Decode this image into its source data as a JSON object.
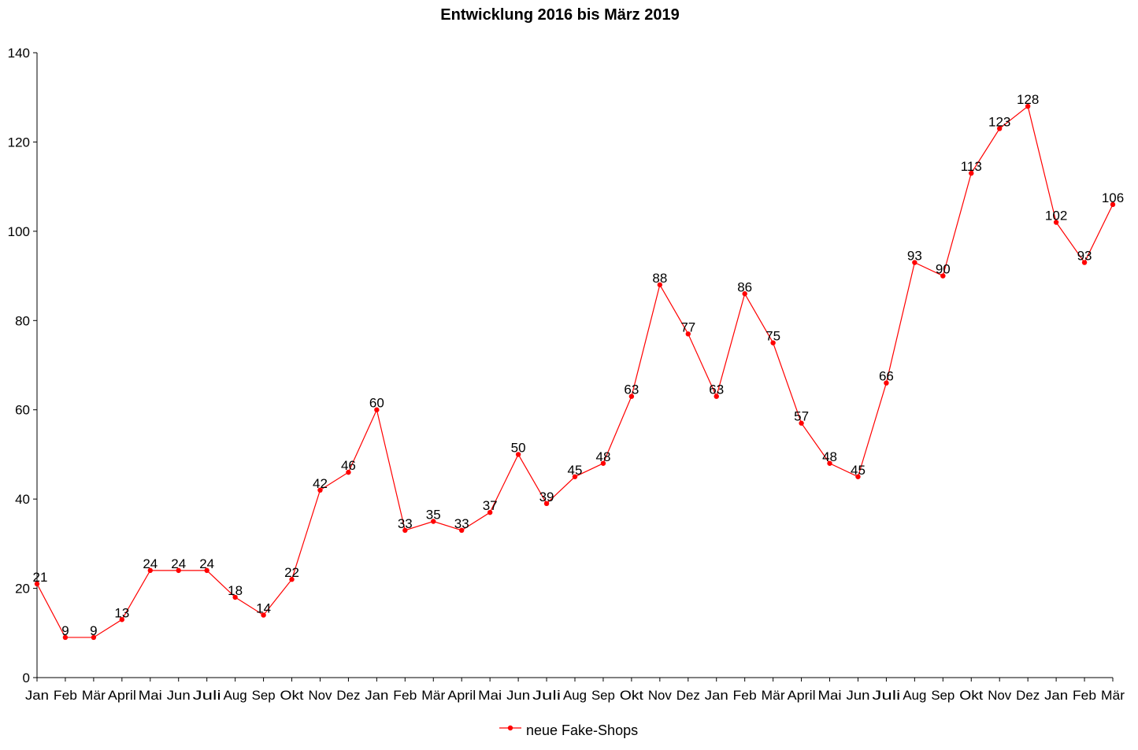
{
  "chart_data": {
    "type": "line",
    "title": "Entwicklung 2016 bis März 2019",
    "xlabel": "",
    "ylabel": "",
    "ylim": [
      0,
      140
    ],
    "yticks": [
      0,
      20,
      40,
      60,
      80,
      100,
      120,
      140
    ],
    "grid": false,
    "legend_position": "bottom",
    "categories": [
      "Jan",
      "Feb",
      "Mär",
      "April",
      "Mai",
      "Jun",
      "Juli",
      "Aug",
      "Sep",
      "Okt",
      "Nov",
      "Dez",
      "Jan",
      "Feb",
      "Mär",
      "April",
      "Mai",
      "Jun",
      "Juli",
      "Aug",
      "Sep",
      "Okt",
      "Nov",
      "Dez",
      "Jan",
      "Feb",
      "Mär",
      "April",
      "Mai",
      "Jun",
      "Juli",
      "Aug",
      "Sep",
      "Okt",
      "Nov",
      "Dez",
      "Jan",
      "Feb",
      "Mär"
    ],
    "series": [
      {
        "name": "neue Fake-Shops",
        "color": "#ff0000",
        "values": [
          21,
          9,
          9,
          13,
          24,
          24,
          24,
          18,
          14,
          22,
          42,
          46,
          60,
          33,
          35,
          33,
          37,
          50,
          39,
          45,
          48,
          63,
          88,
          77,
          63,
          86,
          75,
          57,
          48,
          45,
          66,
          93,
          90,
          113,
          123,
          128,
          102,
          93,
          106
        ]
      }
    ]
  }
}
